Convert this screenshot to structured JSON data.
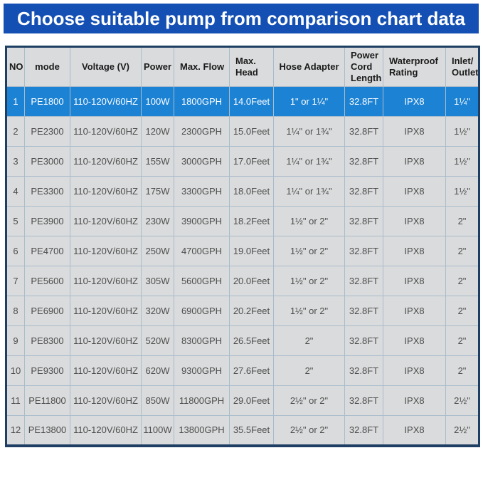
{
  "banner": {
    "title": "Choose suitable pump from comparison chart data"
  },
  "colors": {
    "banner_blue": "#1450b4",
    "highlight_row_blue": "#1c82d4",
    "cell_gray": "#dadbdc",
    "grid_line": "#a9bccb",
    "outer_border_navy": "#1e3f63",
    "header_text": "#1b1b1b",
    "body_text": "#4d4d4d",
    "highlight_text": "#ffffff"
  },
  "chart_data": {
    "type": "table",
    "title": "Choose suitable pump from comparison chart data",
    "columns": [
      "NO",
      "mode",
      "Voltage (V)",
      "Power",
      "Max. Flow",
      "Max. Head",
      "Hose Adapter",
      "Power Cord Length",
      "Waterproof Rating",
      "Inlet/ Outlet"
    ],
    "highlighted_row_index": 0,
    "rows": [
      [
        "1",
        "PE1800",
        "110-120V/60HZ",
        "100W",
        "1800GPH",
        "14.0Feet",
        "1\" or 1¼\"",
        "32.8FT",
        "IPX8",
        "1¼\""
      ],
      [
        "2",
        "PE2300",
        "110-120V/60HZ",
        "120W",
        "2300GPH",
        "15.0Feet",
        "1¼\" or 1¾\"",
        "32.8FT",
        "IPX8",
        "1½\""
      ],
      [
        "3",
        "PE3000",
        "110-120V/60HZ",
        "155W",
        "3000GPH",
        "17.0Feet",
        "1¼\" or 1¾\"",
        "32.8FT",
        "IPX8",
        "1½\""
      ],
      [
        "4",
        "PE3300",
        "110-120V/60HZ",
        "175W",
        "3300GPH",
        "18.0Feet",
        "1¼\" or 1¾\"",
        "32.8FT",
        "IPX8",
        "1½\""
      ],
      [
        "5",
        "PE3900",
        "110-120V/60HZ",
        "230W",
        "3900GPH",
        "18.2Feet",
        "1½\" or 2\"",
        "32.8FT",
        "IPX8",
        "2\""
      ],
      [
        "6",
        "PE4700",
        "110-120V/60HZ",
        "250W",
        "4700GPH",
        "19.0Feet",
        "1½\" or 2\"",
        "32.8FT",
        "IPX8",
        "2\""
      ],
      [
        "7",
        "PE5600",
        "110-120V/60HZ",
        "305W",
        "5600GPH",
        "20.0Feet",
        "1½\" or 2\"",
        "32.8FT",
        "IPX8",
        "2\""
      ],
      [
        "8",
        "PE6900",
        "110-120V/60HZ",
        "320W",
        "6900GPH",
        "20.2Feet",
        "1½\" or 2\"",
        "32.8FT",
        "IPX8",
        "2\""
      ],
      [
        "9",
        "PE8300",
        "110-120V/60HZ",
        "520W",
        "8300GPH",
        "26.5Feet",
        "2\"",
        "32.8FT",
        "IPX8",
        "2\""
      ],
      [
        "10",
        "PE9300",
        "110-120V/60HZ",
        "620W",
        "9300GPH",
        "27.6Feet",
        "2\"",
        "32.8FT",
        "IPX8",
        "2\""
      ],
      [
        "11",
        "PE11800",
        "110-120V/60HZ",
        "850W",
        "11800GPH",
        "29.0Feet",
        "2½\" or 2\"",
        "32.8FT",
        "IPX8",
        "2½\""
      ],
      [
        "12",
        "PE13800",
        "110-120V/60HZ",
        "1100W",
        "13800GPH",
        "35.5Feet",
        "2½\" or 2\"",
        "32.8FT",
        "IPX8",
        "2½\""
      ]
    ]
  }
}
